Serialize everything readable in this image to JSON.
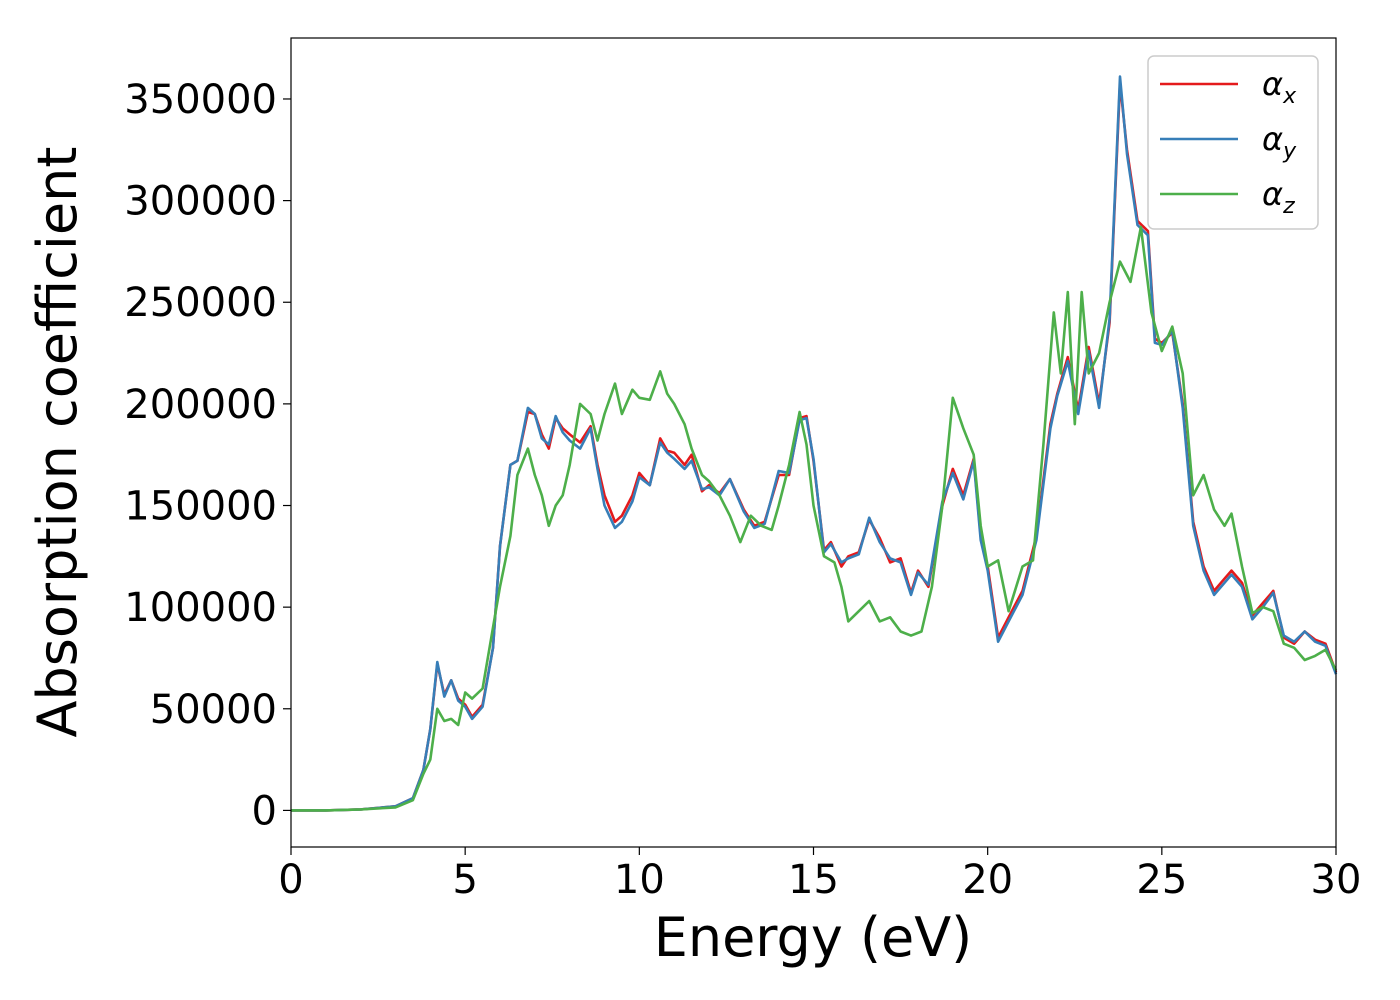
{
  "chart_data": {
    "type": "line",
    "title": "",
    "xlabel": "Energy (eV)",
    "ylabel": "Absorption coefficient",
    "xlim": [
      0,
      30
    ],
    "ylim": [
      -18000,
      380000
    ],
    "xticks": [
      0,
      5,
      10,
      15,
      20,
      25,
      30
    ],
    "yticks": [
      0,
      50000,
      100000,
      150000,
      200000,
      250000,
      300000,
      350000
    ],
    "grid": false,
    "legend_position": "top-right",
    "series": [
      {
        "name": "α",
        "subscript": "x",
        "color": "#e41a1c",
        "points": [
          [
            0,
            0
          ],
          [
            1,
            0
          ],
          [
            2,
            500
          ],
          [
            3,
            2000
          ],
          [
            3.5,
            6000
          ],
          [
            3.8,
            20000
          ],
          [
            4.0,
            40000
          ],
          [
            4.2,
            72000
          ],
          [
            4.4,
            57000
          ],
          [
            4.6,
            64000
          ],
          [
            4.8,
            55000
          ],
          [
            5.0,
            52000
          ],
          [
            5.2,
            46000
          ],
          [
            5.5,
            52000
          ],
          [
            5.8,
            80000
          ],
          [
            6.0,
            130000
          ],
          [
            6.3,
            170000
          ],
          [
            6.5,
            172000
          ],
          [
            6.8,
            196000
          ],
          [
            7.0,
            195000
          ],
          [
            7.2,
            185000
          ],
          [
            7.4,
            178000
          ],
          [
            7.6,
            193000
          ],
          [
            7.8,
            188000
          ],
          [
            8.0,
            185000
          ],
          [
            8.3,
            181000
          ],
          [
            8.6,
            189000
          ],
          [
            8.8,
            170000
          ],
          [
            9.0,
            155000
          ],
          [
            9.3,
            142000
          ],
          [
            9.5,
            145000
          ],
          [
            9.8,
            155000
          ],
          [
            10.0,
            166000
          ],
          [
            10.3,
            160000
          ],
          [
            10.6,
            183000
          ],
          [
            10.8,
            177000
          ],
          [
            11.0,
            176000
          ],
          [
            11.3,
            170000
          ],
          [
            11.5,
            175000
          ],
          [
            11.8,
            157000
          ],
          [
            12.0,
            160000
          ],
          [
            12.3,
            156000
          ],
          [
            12.6,
            163000
          ],
          [
            13.0,
            148000
          ],
          [
            13.3,
            140000
          ],
          [
            13.6,
            142000
          ],
          [
            14.0,
            165000
          ],
          [
            14.3,
            165000
          ],
          [
            14.6,
            193000
          ],
          [
            14.8,
            194000
          ],
          [
            15.0,
            172000
          ],
          [
            15.3,
            128000
          ],
          [
            15.5,
            132000
          ],
          [
            15.8,
            120000
          ],
          [
            16.0,
            125000
          ],
          [
            16.3,
            127000
          ],
          [
            16.6,
            143000
          ],
          [
            16.9,
            134000
          ],
          [
            17.2,
            122000
          ],
          [
            17.5,
            124000
          ],
          [
            17.8,
            107000
          ],
          [
            18.0,
            118000
          ],
          [
            18.3,
            110000
          ],
          [
            18.7,
            150000
          ],
          [
            19.0,
            168000
          ],
          [
            19.3,
            155000
          ],
          [
            19.6,
            173000
          ],
          [
            19.8,
            135000
          ],
          [
            20.0,
            120000
          ],
          [
            20.3,
            85000
          ],
          [
            20.6,
            95000
          ],
          [
            21.0,
            108000
          ],
          [
            21.4,
            135000
          ],
          [
            21.8,
            190000
          ],
          [
            22.0,
            205000
          ],
          [
            22.3,
            223000
          ],
          [
            22.6,
            197000
          ],
          [
            22.9,
            228000
          ],
          [
            23.2,
            200000
          ],
          [
            23.5,
            240000
          ],
          [
            23.8,
            358000
          ],
          [
            24.0,
            325000
          ],
          [
            24.3,
            290000
          ],
          [
            24.6,
            285000
          ],
          [
            24.8,
            232000
          ],
          [
            25.0,
            230000
          ],
          [
            25.3,
            235000
          ],
          [
            25.6,
            200000
          ],
          [
            25.9,
            142000
          ],
          [
            26.2,
            120000
          ],
          [
            26.5,
            108000
          ],
          [
            26.8,
            114000
          ],
          [
            27.0,
            118000
          ],
          [
            27.3,
            112000
          ],
          [
            27.6,
            96000
          ],
          [
            27.9,
            102000
          ],
          [
            28.2,
            108000
          ],
          [
            28.5,
            85000
          ],
          [
            28.8,
            82000
          ],
          [
            29.1,
            88000
          ],
          [
            29.4,
            84000
          ],
          [
            29.7,
            82000
          ],
          [
            30.0,
            68000
          ]
        ]
      },
      {
        "name": "α",
        "subscript": "y",
        "color": "#377eb8",
        "points": [
          [
            0,
            0
          ],
          [
            1,
            0
          ],
          [
            2,
            500
          ],
          [
            3,
            2000
          ],
          [
            3.5,
            6000
          ],
          [
            3.8,
            20000
          ],
          [
            4.0,
            40000
          ],
          [
            4.2,
            73000
          ],
          [
            4.4,
            56000
          ],
          [
            4.6,
            64000
          ],
          [
            4.8,
            54000
          ],
          [
            5.0,
            51000
          ],
          [
            5.2,
            45000
          ],
          [
            5.5,
            51000
          ],
          [
            5.8,
            80000
          ],
          [
            6.0,
            130000
          ],
          [
            6.3,
            170000
          ],
          [
            6.5,
            172000
          ],
          [
            6.8,
            198000
          ],
          [
            7.0,
            195000
          ],
          [
            7.2,
            183000
          ],
          [
            7.4,
            180000
          ],
          [
            7.6,
            194000
          ],
          [
            7.8,
            186000
          ],
          [
            8.0,
            182000
          ],
          [
            8.3,
            178000
          ],
          [
            8.6,
            188000
          ],
          [
            8.8,
            168000
          ],
          [
            9.0,
            150000
          ],
          [
            9.3,
            139000
          ],
          [
            9.5,
            142000
          ],
          [
            9.8,
            152000
          ],
          [
            10.0,
            164000
          ],
          [
            10.3,
            160000
          ],
          [
            10.6,
            181000
          ],
          [
            10.8,
            176000
          ],
          [
            11.0,
            173000
          ],
          [
            11.3,
            168000
          ],
          [
            11.5,
            172000
          ],
          [
            11.8,
            158000
          ],
          [
            12.0,
            159000
          ],
          [
            12.3,
            155000
          ],
          [
            12.6,
            163000
          ],
          [
            13.0,
            147000
          ],
          [
            13.3,
            139000
          ],
          [
            13.6,
            141000
          ],
          [
            14.0,
            167000
          ],
          [
            14.3,
            166000
          ],
          [
            14.6,
            192000
          ],
          [
            14.8,
            193000
          ],
          [
            15.0,
            173000
          ],
          [
            15.3,
            127000
          ],
          [
            15.5,
            131000
          ],
          [
            15.8,
            122000
          ],
          [
            16.0,
            124000
          ],
          [
            16.3,
            126000
          ],
          [
            16.6,
            144000
          ],
          [
            16.9,
            132000
          ],
          [
            17.2,
            124000
          ],
          [
            17.5,
            122000
          ],
          [
            17.8,
            106000
          ],
          [
            18.0,
            117000
          ],
          [
            18.3,
            111000
          ],
          [
            18.7,
            152000
          ],
          [
            19.0,
            166000
          ],
          [
            19.3,
            153000
          ],
          [
            19.6,
            172000
          ],
          [
            19.8,
            133000
          ],
          [
            20.0,
            118000
          ],
          [
            20.3,
            83000
          ],
          [
            20.6,
            93000
          ],
          [
            21.0,
            106000
          ],
          [
            21.4,
            133000
          ],
          [
            21.8,
            188000
          ],
          [
            22.0,
            204000
          ],
          [
            22.3,
            221000
          ],
          [
            22.6,
            195000
          ],
          [
            22.9,
            226000
          ],
          [
            23.2,
            198000
          ],
          [
            23.5,
            242000
          ],
          [
            23.8,
            361000
          ],
          [
            24.0,
            323000
          ],
          [
            24.3,
            288000
          ],
          [
            24.6,
            283000
          ],
          [
            24.8,
            230000
          ],
          [
            25.0,
            229000
          ],
          [
            25.3,
            236000
          ],
          [
            25.6,
            198000
          ],
          [
            25.9,
            140000
          ],
          [
            26.2,
            118000
          ],
          [
            26.5,
            106000
          ],
          [
            26.8,
            112000
          ],
          [
            27.0,
            116000
          ],
          [
            27.3,
            110000
          ],
          [
            27.6,
            94000
          ],
          [
            27.9,
            100000
          ],
          [
            28.2,
            107000
          ],
          [
            28.5,
            86000
          ],
          [
            28.8,
            83000
          ],
          [
            29.1,
            88000
          ],
          [
            29.4,
            83000
          ],
          [
            29.7,
            81000
          ],
          [
            30.0,
            67000
          ]
        ]
      },
      {
        "name": "α",
        "subscript": "z",
        "color": "#4daf4a",
        "points": [
          [
            0,
            0
          ],
          [
            1,
            0
          ],
          [
            2,
            500
          ],
          [
            3,
            1500
          ],
          [
            3.5,
            5000
          ],
          [
            3.8,
            18000
          ],
          [
            4.0,
            25000
          ],
          [
            4.2,
            50000
          ],
          [
            4.4,
            44000
          ],
          [
            4.6,
            45000
          ],
          [
            4.8,
            42000
          ],
          [
            5.0,
            58000
          ],
          [
            5.2,
            55000
          ],
          [
            5.5,
            60000
          ],
          [
            5.8,
            90000
          ],
          [
            6.0,
            110000
          ],
          [
            6.3,
            135000
          ],
          [
            6.5,
            165000
          ],
          [
            6.8,
            178000
          ],
          [
            7.0,
            165000
          ],
          [
            7.2,
            155000
          ],
          [
            7.4,
            140000
          ],
          [
            7.6,
            150000
          ],
          [
            7.8,
            155000
          ],
          [
            8.0,
            170000
          ],
          [
            8.3,
            200000
          ],
          [
            8.6,
            195000
          ],
          [
            8.8,
            182000
          ],
          [
            9.0,
            195000
          ],
          [
            9.3,
            210000
          ],
          [
            9.5,
            195000
          ],
          [
            9.8,
            207000
          ],
          [
            10.0,
            203000
          ],
          [
            10.3,
            202000
          ],
          [
            10.6,
            216000
          ],
          [
            10.8,
            205000
          ],
          [
            11.0,
            200000
          ],
          [
            11.3,
            190000
          ],
          [
            11.5,
            178000
          ],
          [
            11.8,
            165000
          ],
          [
            12.0,
            162000
          ],
          [
            12.3,
            155000
          ],
          [
            12.6,
            145000
          ],
          [
            12.9,
            132000
          ],
          [
            13.2,
            145000
          ],
          [
            13.5,
            140000
          ],
          [
            13.8,
            138000
          ],
          [
            14.0,
            150000
          ],
          [
            14.3,
            170000
          ],
          [
            14.6,
            196000
          ],
          [
            14.8,
            180000
          ],
          [
            15.0,
            150000
          ],
          [
            15.3,
            125000
          ],
          [
            15.6,
            122000
          ],
          [
            15.8,
            110000
          ],
          [
            16.0,
            93000
          ],
          [
            16.3,
            98000
          ],
          [
            16.6,
            103000
          ],
          [
            16.9,
            93000
          ],
          [
            17.2,
            95000
          ],
          [
            17.5,
            88000
          ],
          [
            17.8,
            86000
          ],
          [
            18.1,
            88000
          ],
          [
            18.4,
            110000
          ],
          [
            18.7,
            150000
          ],
          [
            19.0,
            203000
          ],
          [
            19.3,
            188000
          ],
          [
            19.6,
            175000
          ],
          [
            19.8,
            140000
          ],
          [
            20.0,
            120000
          ],
          [
            20.3,
            123000
          ],
          [
            20.6,
            98000
          ],
          [
            21.0,
            120000
          ],
          [
            21.3,
            123000
          ],
          [
            21.6,
            180000
          ],
          [
            21.9,
            245000
          ],
          [
            22.1,
            215000
          ],
          [
            22.3,
            255000
          ],
          [
            22.5,
            190000
          ],
          [
            22.7,
            255000
          ],
          [
            22.9,
            215000
          ],
          [
            23.2,
            225000
          ],
          [
            23.5,
            250000
          ],
          [
            23.8,
            270000
          ],
          [
            24.1,
            260000
          ],
          [
            24.4,
            287000
          ],
          [
            24.7,
            245000
          ],
          [
            25.0,
            226000
          ],
          [
            25.3,
            238000
          ],
          [
            25.6,
            215000
          ],
          [
            25.9,
            155000
          ],
          [
            26.2,
            165000
          ],
          [
            26.5,
            148000
          ],
          [
            26.8,
            140000
          ],
          [
            27.0,
            146000
          ],
          [
            27.3,
            120000
          ],
          [
            27.6,
            97000
          ],
          [
            27.9,
            100000
          ],
          [
            28.2,
            98000
          ],
          [
            28.5,
            82000
          ],
          [
            28.8,
            80000
          ],
          [
            29.1,
            74000
          ],
          [
            29.4,
            76000
          ],
          [
            29.7,
            79000
          ],
          [
            30.0,
            69000
          ]
        ]
      }
    ]
  }
}
